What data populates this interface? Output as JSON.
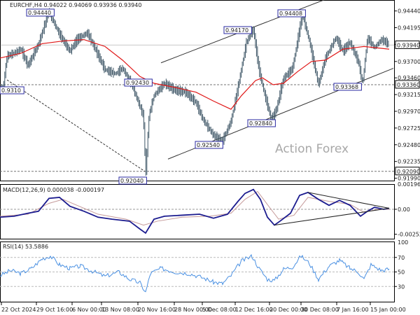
{
  "chart_data": [
    {
      "type": "candlestick",
      "title": "EURCHF,H4  0.94022 0.94069 0.93936 0.93940",
      "watermark": "Action Forex",
      "ylim": [
        0.91965,
        0.9458
      ],
      "y_ticks": [
        0.9444,
        0.94195,
        0.9395,
        0.937,
        0.9346,
        0.93215,
        0.9297,
        0.92725,
        0.9248,
        0.92235,
        0.9199
      ],
      "current_price": 0.9394,
      "support_line": 0.9336,
      "low_line": 0.9209,
      "moving_average": "red",
      "price_labels": [
        "0.94440",
        "0.94408",
        "0.94170",
        "0.92430",
        "0.92840",
        "0.92540",
        "0.93368",
        "0.92040",
        "0.93940",
        "0.93360",
        "0.92090",
        "0.9310"
      ],
      "price_path": [
        [
          0,
          0.9328
        ],
        [
          5,
          0.9335
        ],
        [
          10,
          0.9378
        ],
        [
          20,
          0.9382
        ],
        [
          30,
          0.9388
        ],
        [
          40,
          0.9364
        ],
        [
          55,
          0.9395
        ],
        [
          70,
          0.9444
        ],
        [
          78,
          0.9425
        ],
        [
          85,
          0.941
        ],
        [
          100,
          0.9385
        ],
        [
          110,
          0.9402
        ],
        [
          125,
          0.9412
        ],
        [
          140,
          0.938
        ],
        [
          150,
          0.9358
        ],
        [
          165,
          0.9352
        ],
        [
          175,
          0.936
        ],
        [
          185,
          0.9343
        ],
        [
          195,
          0.9318
        ],
        [
          205,
          0.929
        ],
        [
          208,
          0.9204
        ],
        [
          213,
          0.9292
        ],
        [
          220,
          0.932
        ],
        [
          235,
          0.9338
        ],
        [
          250,
          0.9328
        ],
        [
          265,
          0.9325
        ],
        [
          280,
          0.931
        ],
        [
          290,
          0.9285
        ],
        [
          305,
          0.9262
        ],
        [
          318,
          0.9254
        ],
        [
          330,
          0.9282
        ],
        [
          340,
          0.9332
        ],
        [
          352,
          0.9398
        ],
        [
          362,
          0.9417
        ],
        [
          370,
          0.9358
        ],
        [
          378,
          0.9322
        ],
        [
          388,
          0.9284
        ],
        [
          395,
          0.93
        ],
        [
          405,
          0.9345
        ],
        [
          418,
          0.936
        ],
        [
          432,
          0.944
        ],
        [
          442,
          0.94
        ],
        [
          455,
          0.9336
        ],
        [
          465,
          0.9375
        ],
        [
          480,
          0.9405
        ],
        [
          490,
          0.9385
        ],
        [
          500,
          0.9398
        ],
        [
          512,
          0.937
        ],
        [
          518,
          0.9337
        ],
        [
          525,
          0.9405
        ],
        [
          535,
          0.939
        ],
        [
          545,
          0.9402
        ],
        [
          552,
          0.9398
        ],
        [
          556,
          0.9394
        ]
      ],
      "ma_path": [
        [
          0,
          0.9375
        ],
        [
          30,
          0.9382
        ],
        [
          60,
          0.9396
        ],
        [
          90,
          0.94
        ],
        [
          120,
          0.9402
        ],
        [
          150,
          0.9392
        ],
        [
          175,
          0.9372
        ],
        [
          200,
          0.9348
        ],
        [
          220,
          0.9338
        ],
        [
          250,
          0.9332
        ],
        [
          280,
          0.9325
        ],
        [
          305,
          0.9312
        ],
        [
          330,
          0.93
        ],
        [
          345,
          0.932
        ],
        [
          365,
          0.9342
        ],
        [
          375,
          0.9346
        ],
        [
          390,
          0.9336
        ],
        [
          405,
          0.9338
        ],
        [
          425,
          0.9355
        ],
        [
          445,
          0.937
        ],
        [
          465,
          0.9372
        ],
        [
          490,
          0.9388
        ],
        [
          520,
          0.9392
        ],
        [
          556,
          0.9388
        ]
      ],
      "channel_upper": [
        [
          230,
          0.9368
        ],
        [
          470,
          0.9463
        ]
      ],
      "channel_lower": [
        [
          240,
          0.9227
        ],
        [
          562,
          0.936
        ]
      ],
      "diag_line": [
        [
          10,
          0.9343
        ],
        [
          207,
          0.9209
        ]
      ]
    },
    {
      "type": "line",
      "title": "MACD(12,26,9) 0.000038 -0.000197",
      "ylim": [
        -0.0029,
        0.0024
      ],
      "y_ticks": [
        0.0,
        -0.002521
      ],
      "tick_labels": [
        "0.00",
        "-0.002521"
      ],
      "top_label": "0.001965",
      "series": [
        {
          "color": "#1c1c8f",
          "values": [
            [
              0,
              -0.0008
            ],
            [
              20,
              -0.0007
            ],
            [
              40,
              -0.0004
            ],
            [
              55,
              -0.0002
            ],
            [
              70,
              0.0011
            ],
            [
              85,
              0.0012
            ],
            [
              100,
              0.0003
            ],
            [
              120,
              -0.0002
            ],
            [
              140,
              -0.0008
            ],
            [
              160,
              -0.001
            ],
            [
              185,
              -0.0012
            ],
            [
              200,
              -0.002
            ],
            [
              208,
              -0.0024
            ],
            [
              220,
              -0.001
            ],
            [
              235,
              -0.0007
            ],
            [
              260,
              -0.0006
            ],
            [
              285,
              -0.0005
            ],
            [
              305,
              -0.0009
            ],
            [
              325,
              -0.0005
            ],
            [
              340,
              0.0008
            ],
            [
              350,
              0.0016
            ],
            [
              362,
              0.002
            ],
            [
              372,
              0.001
            ],
            [
              382,
              -0.0008
            ],
            [
              392,
              -0.0016
            ],
            [
              400,
              -0.0012
            ],
            [
              415,
              -0.0004
            ],
            [
              428,
              0.0014
            ],
            [
              440,
              0.0017
            ],
            [
              455,
              0.001
            ],
            [
              470,
              0.0004
            ],
            [
              485,
              0.0009
            ],
            [
              500,
              0.0004
            ],
            [
              515,
              -0.0007
            ],
            [
              525,
              -0.0002
            ],
            [
              535,
              0.0002
            ],
            [
              548,
              0.0
            ],
            [
              556,
              0.0001
            ]
          ]
        },
        {
          "color": "#c59a9a",
          "values": [
            [
              0,
              -0.0007
            ],
            [
              40,
              -0.0005
            ],
            [
              70,
              0.0006
            ],
            [
              90,
              0.001
            ],
            [
              110,
              0.0004
            ],
            [
              140,
              -0.0005
            ],
            [
              180,
              -0.001
            ],
            [
              205,
              -0.0016
            ],
            [
              225,
              -0.0012
            ],
            [
              260,
              -0.0008
            ],
            [
              300,
              -0.0007
            ],
            [
              330,
              -0.0004
            ],
            [
              350,
              0.001
            ],
            [
              368,
              0.0018
            ],
            [
              385,
              0.0002
            ],
            [
              398,
              -0.001
            ],
            [
              420,
              -0.0006
            ],
            [
              440,
              0.0012
            ],
            [
              470,
              0.0008
            ],
            [
              500,
              0.0005
            ],
            [
              520,
              -0.0003
            ],
            [
              540,
              0.0
            ],
            [
              556,
              0.0
            ]
          ]
        }
      ],
      "triangle": [
        [
          [
            440,
            0.0017
          ],
          [
            556,
            0.0001
          ]
        ],
        [
          [
            392,
            -0.0016
          ],
          [
            556,
            0.0001
          ]
        ]
      ]
    },
    {
      "type": "line",
      "title": "RSI(14) 53.5886",
      "ylim": [
        10,
        90
      ],
      "y_ticks": [
        70,
        50,
        30
      ],
      "tick_labels": [
        "70",
        "50",
        "30"
      ],
      "top_label": "100",
      "series": [
        {
          "color": "#4a90e2",
          "values": [
            [
              0,
              45
            ],
            [
              15,
              52
            ],
            [
              30,
              48
            ],
            [
              45,
              55
            ],
            [
              60,
              68
            ],
            [
              72,
              72
            ],
            [
              85,
              60
            ],
            [
              100,
              55
            ],
            [
              115,
              58
            ],
            [
              130,
              52
            ],
            [
              150,
              44
            ],
            [
              170,
              50
            ],
            [
              185,
              40
            ],
            [
              200,
              35
            ],
            [
              208,
              22
            ],
            [
              215,
              48
            ],
            [
              230,
              55
            ],
            [
              250,
              50
            ],
            [
              270,
              48
            ],
            [
              290,
              42
            ],
            [
              305,
              36
            ],
            [
              318,
              34
            ],
            [
              330,
              45
            ],
            [
              345,
              65
            ],
            [
              360,
              72
            ],
            [
              370,
              55
            ],
            [
              382,
              40
            ],
            [
              392,
              38
            ],
            [
              405,
              54
            ],
            [
              418,
              57
            ],
            [
              430,
              72
            ],
            [
              442,
              62
            ],
            [
              455,
              40
            ],
            [
              470,
              58
            ],
            [
              485,
              66
            ],
            [
              500,
              55
            ],
            [
              512,
              50
            ],
            [
              520,
              40
            ],
            [
              530,
              60
            ],
            [
              545,
              52
            ],
            [
              556,
              54
            ]
          ]
        }
      ]
    }
  ],
  "x_axis": {
    "tick_labels": [
      "22 Oct 2024",
      "29 Oct 16:00",
      "6 Nov 00:00",
      "13 Nov 08:00",
      "20 Nov 16:00",
      "28 Nov 00:00",
      "5 Dec 08:00",
      "12 Dec 16:00",
      "20 Dec 00:00",
      "30 Dec 08:00",
      "7 Jan 16:00",
      "15 Jan 00:00"
    ]
  }
}
